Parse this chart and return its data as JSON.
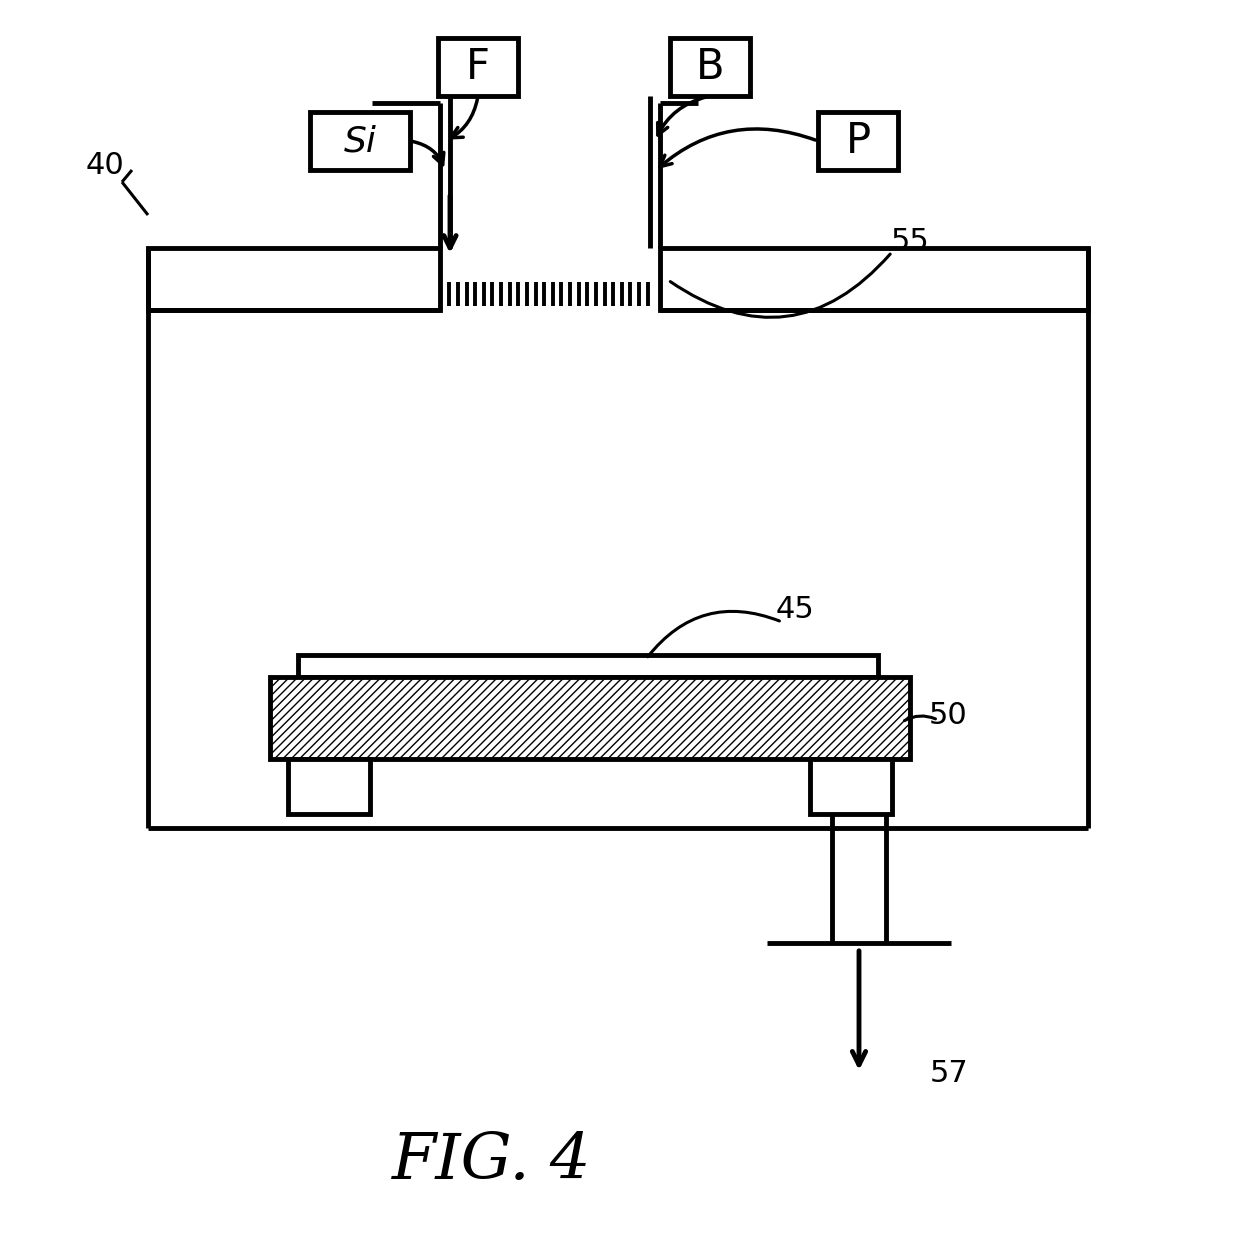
{
  "fig_label": "FIG. 4",
  "label_40": "40",
  "label_45": "45",
  "label_50": "50",
  "label_55": "55",
  "label_57": "57",
  "box_F": "F",
  "box_B": "B",
  "box_Si": "Si",
  "box_P": "P",
  "line_color": "#000000",
  "bg_color": "#ffffff"
}
